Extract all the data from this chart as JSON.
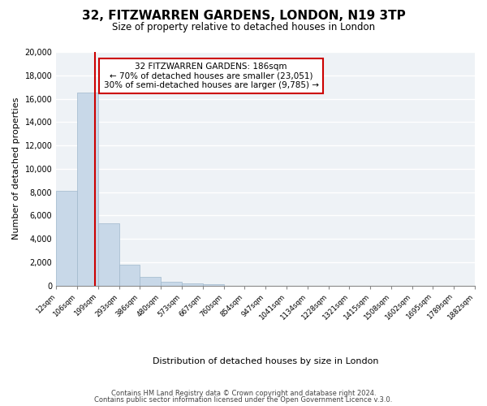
{
  "title": "32, FITZWARREN GARDENS, LONDON, N19 3TP",
  "subtitle": "Size of property relative to detached houses in London",
  "xlabel": "Distribution of detached houses by size in London",
  "ylabel": "Number of detached properties",
  "bar_color": "#c8d8e8",
  "bar_edge_color": "#a0b8cc",
  "property_line_color": "#cc0000",
  "property_size": 186,
  "property_label": "32 FITZWARREN GARDENS: 186sqm",
  "annotation_line1": "← 70% of detached houses are smaller (23,051)",
  "annotation_line2": "30% of semi-detached houses are larger (9,785) →",
  "tick_labels": [
    "12sqm",
    "106sqm",
    "199sqm",
    "293sqm",
    "386sqm",
    "480sqm",
    "573sqm",
    "667sqm",
    "760sqm",
    "854sqm",
    "947sqm",
    "1041sqm",
    "1134sqm",
    "1228sqm",
    "1321sqm",
    "1415sqm",
    "1508sqm",
    "1602sqm",
    "1695sqm",
    "1789sqm",
    "1882sqm"
  ],
  "values": [
    8100,
    16500,
    5300,
    1800,
    750,
    300,
    160,
    100,
    0,
    0,
    0,
    0,
    0,
    0,
    0,
    0,
    0,
    0,
    0,
    0
  ],
  "ylim": [
    0,
    20000
  ],
  "yticks": [
    0,
    2000,
    4000,
    6000,
    8000,
    10000,
    12000,
    14000,
    16000,
    18000,
    20000
  ],
  "footer1": "Contains HM Land Registry data © Crown copyright and database right 2024.",
  "footer2": "Contains public sector information licensed under the Open Government Licence v.3.0.",
  "background_color": "#ffffff",
  "plot_bg_color": "#eef2f6"
}
